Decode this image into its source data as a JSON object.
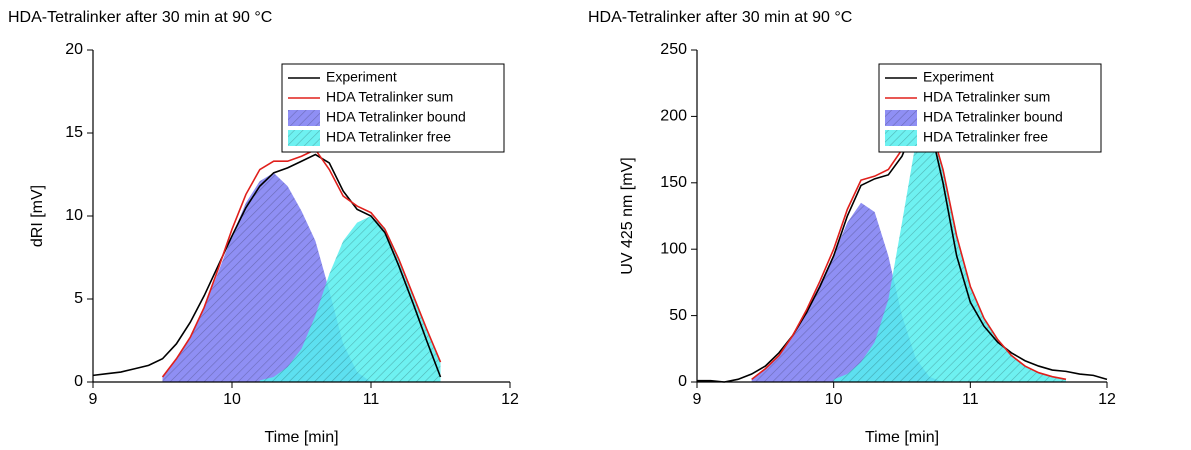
{
  "chart_data": [
    {
      "type": "line",
      "title": "HDA-Tetralinker after 30 min at 90 °C",
      "xlabel": "Time [min]",
      "ylabel": "dRI [mV]",
      "xlim": [
        9,
        12
      ],
      "xticks": [
        9,
        10,
        11,
        12
      ],
      "ylim": [
        0,
        20
      ],
      "yticks": [
        0,
        5,
        10,
        15,
        20
      ],
      "legend": "upper right",
      "x": [
        9.0,
        9.1,
        9.2,
        9.3,
        9.4,
        9.5,
        9.6,
        9.7,
        9.8,
        9.9,
        10.0,
        10.1,
        10.2,
        10.3,
        10.4,
        10.5,
        10.6,
        10.7,
        10.8,
        10.9,
        11.0,
        11.1,
        11.2,
        11.3,
        11.4,
        11.5
      ],
      "series": [
        {
          "name": "Experiment",
          "style": "line",
          "color": "#000000",
          "values": [
            0.4,
            0.5,
            0.6,
            0.8,
            1.0,
            1.4,
            2.3,
            3.6,
            5.2,
            7.0,
            8.8,
            10.5,
            11.8,
            12.6,
            12.9,
            13.3,
            13.7,
            13.2,
            11.5,
            10.4,
            10.0,
            9.0,
            7.0,
            4.8,
            2.5,
            0.3
          ]
        },
        {
          "name": "HDA Tetralinker sum",
          "style": "line",
          "color": "#e0201c",
          "values": [
            null,
            null,
            null,
            null,
            null,
            0.3,
            1.4,
            2.7,
            4.5,
            6.8,
            9.2,
            11.3,
            12.8,
            13.3,
            13.3,
            13.6,
            14.0,
            12.8,
            11.2,
            10.6,
            10.2,
            9.2,
            7.4,
            5.3,
            3.2,
            1.2
          ]
        },
        {
          "name": "HDA Tetralinker bound",
          "style": "hatched",
          "color": "#7b7bf2",
          "values": [
            null,
            null,
            null,
            null,
            null,
            0.3,
            1.4,
            2.7,
            4.5,
            6.6,
            8.8,
            10.8,
            12.1,
            12.6,
            11.8,
            10.3,
            8.5,
            5.5,
            2.3,
            0.6,
            0,
            null,
            null,
            null,
            null,
            null
          ]
        },
        {
          "name": "HDA Tetralinker free",
          "style": "hatched",
          "color": "#55eeee",
          "values": [
            null,
            null,
            null,
            null,
            null,
            null,
            null,
            null,
            null,
            null,
            null,
            null,
            0.1,
            0.3,
            0.9,
            2.0,
            4.0,
            6.5,
            8.5,
            9.6,
            10.0,
            9.3,
            7.5,
            5.3,
            3.2,
            1.2
          ]
        }
      ]
    },
    {
      "type": "line",
      "title": "HDA-Tetralinker after 30 min at 90 °C",
      "xlabel": "Time [min]",
      "ylabel": "UV 425 nm [mV]",
      "xlim": [
        9,
        12
      ],
      "xticks": [
        9,
        10,
        11,
        12
      ],
      "ylim": [
        0,
        250
      ],
      "yticks": [
        0,
        50,
        100,
        150,
        200,
        250
      ],
      "legend": "upper right",
      "x": [
        9.0,
        9.1,
        9.2,
        9.3,
        9.4,
        9.5,
        9.6,
        9.7,
        9.8,
        9.9,
        10.0,
        10.1,
        10.2,
        10.3,
        10.4,
        10.5,
        10.6,
        10.7,
        10.8,
        10.9,
        11.0,
        11.1,
        11.2,
        11.3,
        11.4,
        11.5,
        11.6,
        11.7,
        11.8,
        11.9,
        12.0
      ],
      "series": [
        {
          "name": "Experiment",
          "style": "line",
          "color": "#000000",
          "values": [
            1,
            1,
            0,
            2,
            6,
            12,
            22,
            35,
            52,
            72,
            95,
            125,
            148,
            153,
            156,
            170,
            195,
            195,
            150,
            95,
            60,
            42,
            30,
            22,
            16,
            12,
            9,
            8,
            6,
            5,
            2
          ]
        },
        {
          "name": "HDA Tetralinker sum",
          "style": "line",
          "color": "#e0201c",
          "values": [
            null,
            null,
            null,
            null,
            2,
            10,
            20,
            35,
            54,
            76,
            100,
            130,
            152,
            155,
            160,
            175,
            198,
            196,
            160,
            110,
            72,
            48,
            32,
            20,
            12,
            7,
            4,
            2,
            null,
            null,
            null
          ]
        },
        {
          "name": "HDA Tetralinker bound",
          "style": "hatched",
          "color": "#7b7bf2",
          "values": [
            null,
            null,
            null,
            null,
            2,
            10,
            20,
            35,
            53,
            74,
            96,
            120,
            135,
            128,
            95,
            50,
            18,
            4,
            0,
            null,
            null,
            null,
            null,
            null,
            null,
            null,
            null,
            null,
            null,
            null,
            null
          ]
        },
        {
          "name": "HDA Tetralinker free",
          "style": "hatched",
          "color": "#55eeee",
          "values": [
            null,
            null,
            null,
            null,
            null,
            null,
            null,
            null,
            null,
            null,
            2,
            6,
            15,
            30,
            62,
            120,
            180,
            190,
            160,
            110,
            72,
            48,
            32,
            20,
            12,
            7,
            4,
            2,
            null,
            null,
            null
          ]
        }
      ]
    }
  ]
}
